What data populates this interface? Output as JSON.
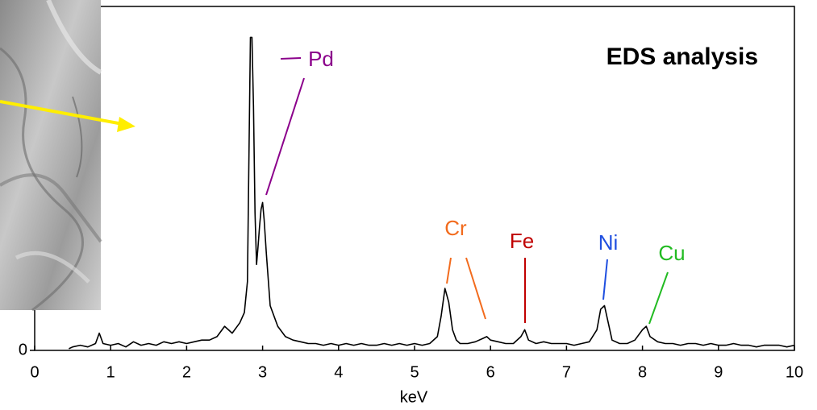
{
  "chart_data": {
    "type": "line",
    "title": "EDS analysis",
    "x_label": "keV",
    "color": "#000000",
    "x": [
      0.45,
      0.5,
      0.6,
      0.7,
      0.8,
      0.85,
      0.9,
      1.0,
      1.1,
      1.2,
      1.3,
      1.4,
      1.5,
      1.6,
      1.7,
      1.8,
      1.9,
      2.0,
      2.1,
      2.2,
      2.3,
      2.4,
      2.5,
      2.6,
      2.7,
      2.76,
      2.8,
      2.82,
      2.84,
      2.86,
      2.88,
      2.9,
      2.92,
      2.94,
      2.96,
      2.98,
      3.0,
      3.02,
      3.05,
      3.1,
      3.15,
      3.2,
      3.3,
      3.4,
      3.5,
      3.6,
      3.7,
      3.8,
      3.9,
      4.0,
      4.1,
      4.2,
      4.3,
      4.4,
      4.5,
      4.6,
      4.7,
      4.8,
      4.9,
      5.0,
      5.1,
      5.2,
      5.3,
      5.35,
      5.4,
      5.45,
      5.5,
      5.55,
      5.6,
      5.7,
      5.8,
      5.9,
      5.95,
      6.0,
      6.1,
      6.2,
      6.3,
      6.4,
      6.45,
      6.5,
      6.6,
      6.7,
      6.8,
      6.9,
      7.0,
      7.1,
      7.2,
      7.3,
      7.4,
      7.45,
      7.5,
      7.55,
      7.6,
      7.7,
      7.8,
      7.9,
      8.0,
      8.05,
      8.1,
      8.2,
      8.3,
      8.4,
      8.5,
      8.6,
      8.7,
      8.8,
      8.9,
      9.0,
      9.1,
      9.2,
      9.3,
      9.4,
      9.5,
      9.6,
      9.7,
      9.8,
      9.9,
      10.0
    ],
    "values": [
      0.5,
      1,
      1.5,
      1,
      2,
      5,
      2,
      1.5,
      2,
      1,
      2.5,
      1.5,
      2,
      1.5,
      2.5,
      2,
      2.5,
      2,
      2.5,
      3,
      3,
      4,
      7,
      5,
      8,
      11,
      20,
      55,
      91,
      91,
      71,
      40,
      25,
      30,
      36,
      41,
      43,
      38,
      28,
      13,
      10,
      7,
      4,
      3,
      2.5,
      2,
      2,
      1.5,
      2,
      1.5,
      2,
      1.5,
      2,
      1.5,
      1.5,
      2,
      1.5,
      2,
      1.5,
      2,
      1.5,
      2,
      4,
      10,
      18,
      14,
      6,
      3,
      2,
      2,
      2.5,
      3.5,
      4,
      3,
      2.5,
      2,
      2,
      4,
      6,
      3,
      2,
      2.5,
      2,
      2,
      2,
      1.5,
      2,
      2.5,
      6,
      12,
      13,
      8,
      3,
      2,
      2,
      3,
      6,
      7,
      4,
      2.5,
      2,
      2,
      1.5,
      2,
      2,
      1.5,
      2,
      1.5,
      1.5,
      2,
      1.5,
      1.5,
      1,
      1.5,
      1.5,
      1.5,
      1,
      1.5
    ],
    "xlim": [
      0,
      10
    ],
    "xticks": [
      0,
      1,
      2,
      3,
      4,
      5,
      6,
      7,
      8,
      9,
      10
    ],
    "ylim": [
      0,
      100
    ],
    "yticks": [
      0
    ],
    "annotations": [
      {
        "text": "Pd",
        "color": "#8b008b"
      },
      {
        "text": "Cr",
        "color": "#f26b1d"
      },
      {
        "text": "Fe",
        "color": "#c00000"
      },
      {
        "text": "Ni",
        "color": "#1f4fe0"
      },
      {
        "text": "Cu",
        "color": "#22bb22"
      }
    ]
  }
}
